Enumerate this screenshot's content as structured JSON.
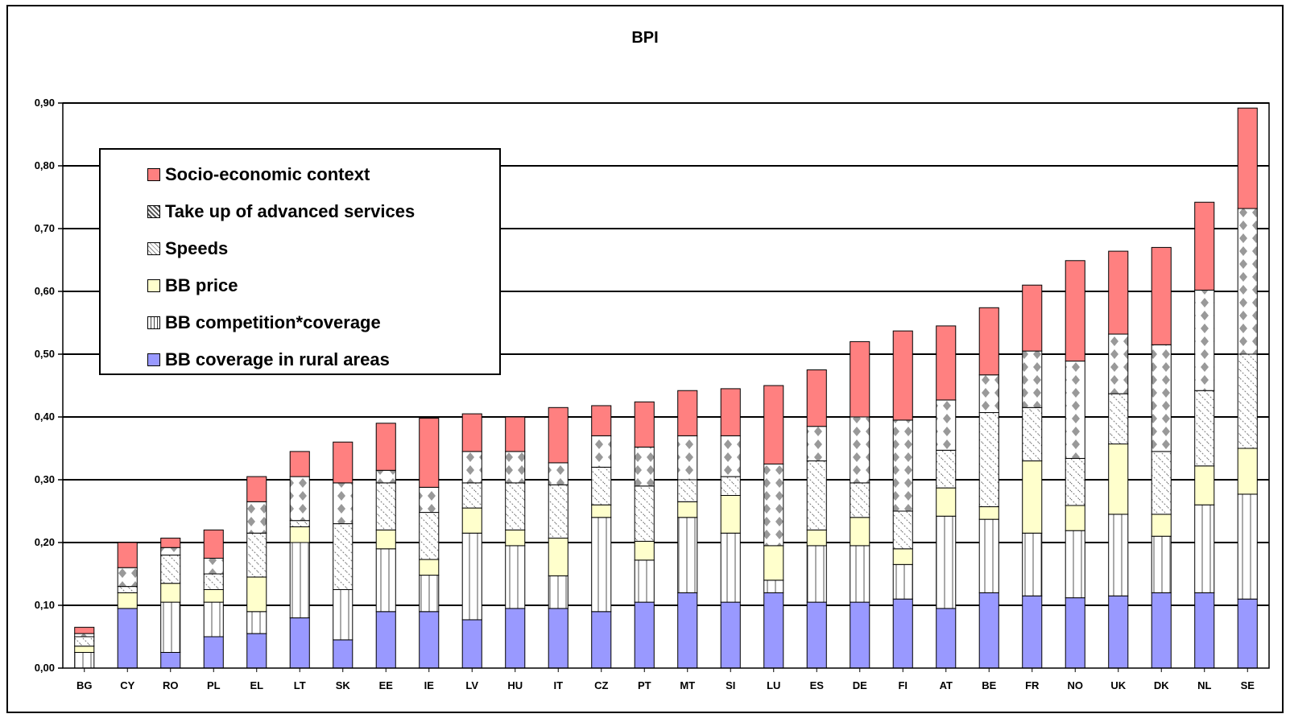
{
  "chart_data": {
    "type": "bar",
    "stacked": true,
    "title": "BPI",
    "xlabel": "",
    "ylabel": "",
    "ylim": [
      0,
      0.9
    ],
    "yticks": [
      "0,00",
      "0,10",
      "0,20",
      "0,30",
      "0,40",
      "0,50",
      "0,60",
      "0,70",
      "0,80",
      "0,90"
    ],
    "grid": true,
    "legend_position": "top-left",
    "categories": [
      "BG",
      "CY",
      "RO",
      "PL",
      "EL",
      "LT",
      "SK",
      "EE",
      "IE",
      "LV",
      "HU",
      "IT",
      "CZ",
      "PT",
      "MT",
      "SI",
      "LU",
      "ES",
      "DE",
      "FI",
      "AT",
      "BE",
      "FR",
      "NO",
      "UK",
      "DK",
      "NL",
      "SE"
    ],
    "series": [
      {
        "name": "BB coverage in rural areas",
        "color": "#9999ff",
        "pattern": "solid",
        "values": [
          0.0,
          0.095,
          0.025,
          0.05,
          0.055,
          0.08,
          0.045,
          0.09,
          0.09,
          0.077,
          0.095,
          0.095,
          0.09,
          0.105,
          0.12,
          0.105,
          0.12,
          0.105,
          0.105,
          0.11,
          0.095,
          0.12,
          0.115,
          0.112,
          0.115,
          0.12,
          0.12,
          0.11
        ]
      },
      {
        "name": "BB competition*coverage",
        "color": "#ffffff",
        "pattern": "vlines",
        "values": [
          0.025,
          0.0,
          0.08,
          0.055,
          0.035,
          0.12,
          0.08,
          0.1,
          0.058,
          0.138,
          0.1,
          0.052,
          0.15,
          0.067,
          0.12,
          0.11,
          0.02,
          0.09,
          0.09,
          0.055,
          0.147,
          0.117,
          0.1,
          0.107,
          0.13,
          0.09,
          0.14,
          0.167
        ]
      },
      {
        "name": "BB price",
        "color": "#ffffcc",
        "pattern": "solid",
        "values": [
          0.01,
          0.025,
          0.03,
          0.02,
          0.055,
          0.025,
          0.0,
          0.03,
          0.025,
          0.04,
          0.025,
          0.06,
          0.02,
          0.03,
          0.025,
          0.06,
          0.055,
          0.025,
          0.045,
          0.025,
          0.045,
          0.02,
          0.115,
          0.04,
          0.112,
          0.035,
          0.062,
          0.073
        ]
      },
      {
        "name": "Speeds",
        "color": "#ffffff",
        "pattern": "speeds",
        "values": [
          0.015,
          0.01,
          0.045,
          0.025,
          0.07,
          0.01,
          0.105,
          0.075,
          0.075,
          0.04,
          0.075,
          0.085,
          0.06,
          0.088,
          0.035,
          0.03,
          0.0,
          0.11,
          0.055,
          0.06,
          0.06,
          0.15,
          0.085,
          0.075,
          0.08,
          0.1,
          0.12,
          0.15
        ]
      },
      {
        "name": "Take up of advanced services",
        "color": "#ffffff",
        "pattern": "diamonds",
        "values": [
          0.005,
          0.03,
          0.012,
          0.025,
          0.05,
          0.07,
          0.065,
          0.02,
          0.04,
          0.05,
          0.05,
          0.035,
          0.05,
          0.062,
          0.07,
          0.065,
          0.13,
          0.055,
          0.105,
          0.145,
          0.08,
          0.06,
          0.09,
          0.155,
          0.095,
          0.17,
          0.16,
          0.232
        ]
      },
      {
        "name": "Socio-economic context",
        "color": "#ff8080",
        "pattern": "solid",
        "values": [
          0.01,
          0.04,
          0.015,
          0.045,
          0.04,
          0.04,
          0.065,
          0.075,
          0.11,
          0.06,
          0.055,
          0.088,
          0.048,
          0.072,
          0.072,
          0.075,
          0.125,
          0.09,
          0.12,
          0.142,
          0.118,
          0.107,
          0.105,
          0.16,
          0.132,
          0.155,
          0.14,
          0.16
        ]
      }
    ]
  }
}
